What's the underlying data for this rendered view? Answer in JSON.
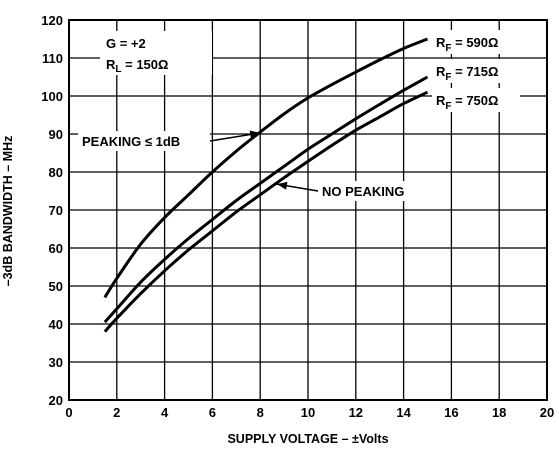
{
  "chart_data": {
    "type": "line",
    "xlabel": "SUPPLY VOLTAGE – ±Volts",
    "ylabel": "–3dB BANDWIDTH – MHz",
    "xlim": [
      0,
      20
    ],
    "ylim": [
      20,
      120
    ],
    "x_ticks": [
      "0",
      "2",
      "4",
      "6",
      "8",
      "10",
      "12",
      "14",
      "16",
      "18",
      "20"
    ],
    "y_ticks": [
      "20",
      "30",
      "40",
      "50",
      "60",
      "70",
      "80",
      "90",
      "100",
      "110",
      "120"
    ],
    "grid": true,
    "series": [
      {
        "name_main": "R",
        "name_sub": "F",
        "name_rest": " = 590Ω",
        "x": [
          1.5,
          2,
          3,
          4,
          5,
          6,
          7,
          8,
          9,
          10,
          11,
          12,
          13,
          14,
          15
        ],
        "y": [
          47,
          52,
          61,
          68,
          74,
          80,
          85.5,
          90.5,
          95.3,
          99.5,
          103,
          106.3,
          109.5,
          112.5,
          115
        ]
      },
      {
        "name_main": "R",
        "name_sub": "F",
        "name_rest": " = 715Ω",
        "x": [
          1.5,
          2,
          3,
          4,
          5,
          6,
          7,
          8,
          9,
          10,
          11,
          12,
          13,
          14,
          15
        ],
        "y": [
          40.5,
          44,
          51,
          57,
          62.5,
          67.5,
          72.5,
          77,
          81.5,
          86,
          90,
          94,
          97.8,
          101.5,
          105
        ]
      },
      {
        "name_main": "R",
        "name_sub": "F",
        "name_rest": " = 750Ω",
        "x": [
          1.5,
          2,
          3,
          4,
          5,
          6,
          7,
          8,
          9,
          10,
          11,
          12,
          13,
          14,
          15
        ],
        "y": [
          38,
          41.5,
          48,
          54,
          59.5,
          64.5,
          69.5,
          74,
          78.5,
          82.8,
          87,
          91,
          94.5,
          98,
          101
        ]
      }
    ],
    "annotations": {
      "gain": "G = +2",
      "load_main": "R",
      "load_sub": "L",
      "load_rest": " = 150Ω",
      "peaking": "PEAKING ≤ 1dB",
      "no_peaking": "NO PEAKING"
    }
  }
}
